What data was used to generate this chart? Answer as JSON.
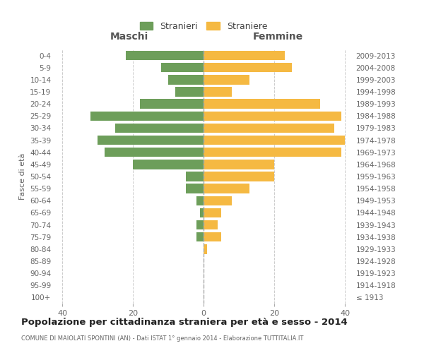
{
  "age_groups": [
    "100+",
    "95-99",
    "90-94",
    "85-89",
    "80-84",
    "75-79",
    "70-74",
    "65-69",
    "60-64",
    "55-59",
    "50-54",
    "45-49",
    "40-44",
    "35-39",
    "30-34",
    "25-29",
    "20-24",
    "15-19",
    "10-14",
    "5-9",
    "0-4"
  ],
  "birth_years": [
    "≤ 1913",
    "1914-1918",
    "1919-1923",
    "1924-1928",
    "1929-1933",
    "1934-1938",
    "1939-1943",
    "1944-1948",
    "1949-1953",
    "1954-1958",
    "1959-1963",
    "1964-1968",
    "1969-1973",
    "1974-1978",
    "1979-1983",
    "1984-1988",
    "1989-1993",
    "1994-1998",
    "1999-2003",
    "2004-2008",
    "2009-2013"
  ],
  "maschi": [
    0,
    0,
    0,
    0,
    0,
    2,
    2,
    1,
    2,
    5,
    5,
    20,
    28,
    30,
    25,
    32,
    18,
    8,
    10,
    12,
    22
  ],
  "femmine": [
    0,
    0,
    0,
    0,
    1,
    5,
    4,
    5,
    8,
    13,
    20,
    20,
    39,
    40,
    37,
    39,
    33,
    8,
    13,
    25,
    23
  ],
  "maschi_color": "#6d9e5a",
  "femmine_color": "#f5b942",
  "background_color": "#ffffff",
  "grid_color": "#cccccc",
  "title": "Popolazione per cittadinanza straniera per età e sesso - 2014",
  "subtitle": "COMUNE DI MAIOLATI SPONTINI (AN) - Dati ISTAT 1° gennaio 2014 - Elaborazione TUTTITALIA.IT",
  "legend_maschi": "Stranieri",
  "legend_femmine": "Straniere",
  "left_header": "Maschi",
  "right_header": "Femmine",
  "ylabel_left": "Fasce di età",
  "xlim": 42
}
